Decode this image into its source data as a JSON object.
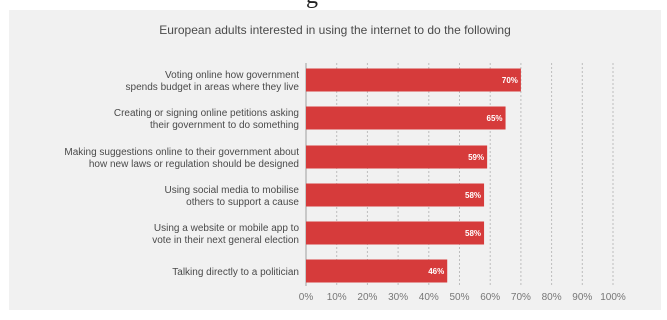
{
  "header_fragment": "g",
  "chart_data": {
    "type": "bar",
    "orientation": "horizontal",
    "title": "European adults interested in using the internet to do the following",
    "categories": [
      [
        "Voting online how government",
        "spends budget in areas where they live"
      ],
      [
        "Creating or signing online petitions asking",
        "their government to do something"
      ],
      [
        "Making suggestions online to their government about",
        "how new laws or regulation should be designed"
      ],
      [
        "Using social media to mobilise",
        "others to support a cause"
      ],
      [
        "Using a website or mobile app to",
        "vote in their next general election"
      ],
      [
        "Talking directly to a politician"
      ]
    ],
    "values": [
      70,
      65,
      59,
      58,
      58,
      46
    ],
    "value_labels": [
      "70%",
      "65%",
      "59%",
      "58%",
      "58%",
      "46%"
    ],
    "xlim": [
      0,
      100
    ],
    "xticks": [
      "0%",
      "10%",
      "20%",
      "30%",
      "40%",
      "50%",
      "60%",
      "70%",
      "80%",
      "90%",
      "100%"
    ],
    "bar_color": "#d63b3b",
    "grid": "vertical dashed",
    "xlabel": "",
    "ylabel": ""
  }
}
